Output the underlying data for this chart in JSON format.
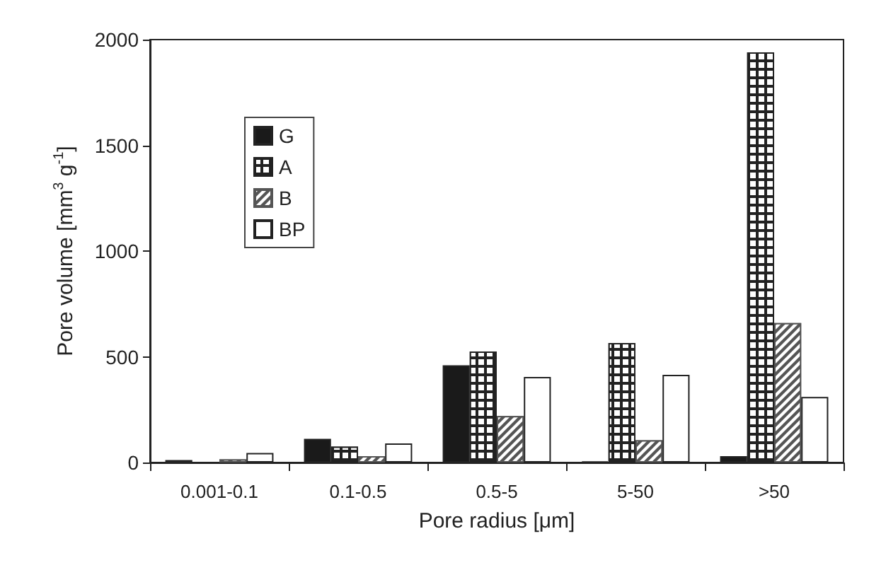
{
  "chart_data": {
    "type": "bar",
    "xlabel": "Pore radius [μm]",
    "ylabel": "Pore volume [mm$^{3}$ g$^{-1}$]",
    "categories": [
      "0.001-0.1",
      "0.1-0.5",
      "0.5-5",
      "5-50",
      ">50"
    ],
    "series": [
      {
        "name": "G",
        "color": "#1a1a1a",
        "values": [
          12,
          112,
          460,
          5,
          30
        ]
      },
      {
        "name": "A",
        "color": "#222222",
        "values": [
          0,
          75,
          525,
          565,
          1940
        ]
      },
      {
        "name": "B",
        "color": "#555555",
        "values": [
          15,
          30,
          220,
          105,
          660
        ]
      },
      {
        "name": "BP",
        "color": "#ffffff",
        "values": [
          45,
          90,
          405,
          415,
          310
        ]
      }
    ],
    "ylim": [
      0,
      2000
    ],
    "yticks": [
      0,
      500,
      1000,
      1500,
      2000
    ],
    "grid": false,
    "legend": "top left"
  }
}
